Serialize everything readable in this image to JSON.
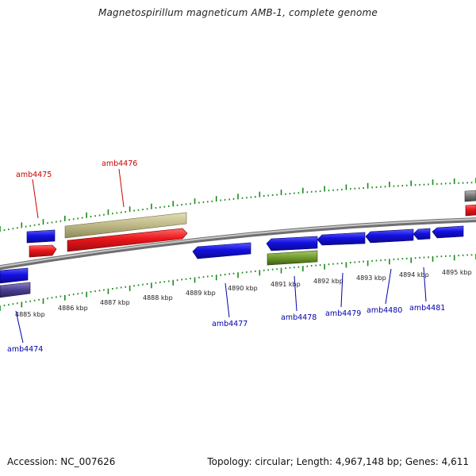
{
  "title": "Magnetospirillum magneticum AMB-1, complete genome",
  "accession_line": "Accession: NC_007626",
  "topology_line": "Topology: circular; Length: 4,967,148 bp; Genes: 4,611",
  "colors": {
    "forward_gene": "#e8161b",
    "reverse_gene": "#1410e0",
    "rna_gene": "#bdb886",
    "green_gene": "#6e9a2c",
    "purple_gene": "#4a3f8f",
    "grey_gene": "#777777",
    "backbone": "#9a9a9a",
    "ticks": "#1b8a1b",
    "forward_label": "#cc0000",
    "reverse_label": "#0000aa"
  },
  "kbp_ticks": [
    {
      "label": "4885 kbp"
    },
    {
      "label": "4886 kbp"
    },
    {
      "label": "4887 kbp"
    },
    {
      "label": "4888 kbp"
    },
    {
      "label": "4889 kbp"
    },
    {
      "label": "4890 kbp"
    },
    {
      "label": "4891 kbp"
    },
    {
      "label": "4892 kbp"
    },
    {
      "label": "4893 kbp"
    },
    {
      "label": "4894 kbp"
    },
    {
      "label": "4895 kbp"
    }
  ],
  "genes_forward": [
    {
      "name": "amb4475"
    },
    {
      "name": "amb4476"
    }
  ],
  "genes_reverse": [
    {
      "name": "amb4474"
    },
    {
      "name": "amb4477"
    },
    {
      "name": "amb4478"
    },
    {
      "name": "amb4479"
    },
    {
      "name": "amb4480"
    },
    {
      "name": "amb4481"
    }
  ]
}
